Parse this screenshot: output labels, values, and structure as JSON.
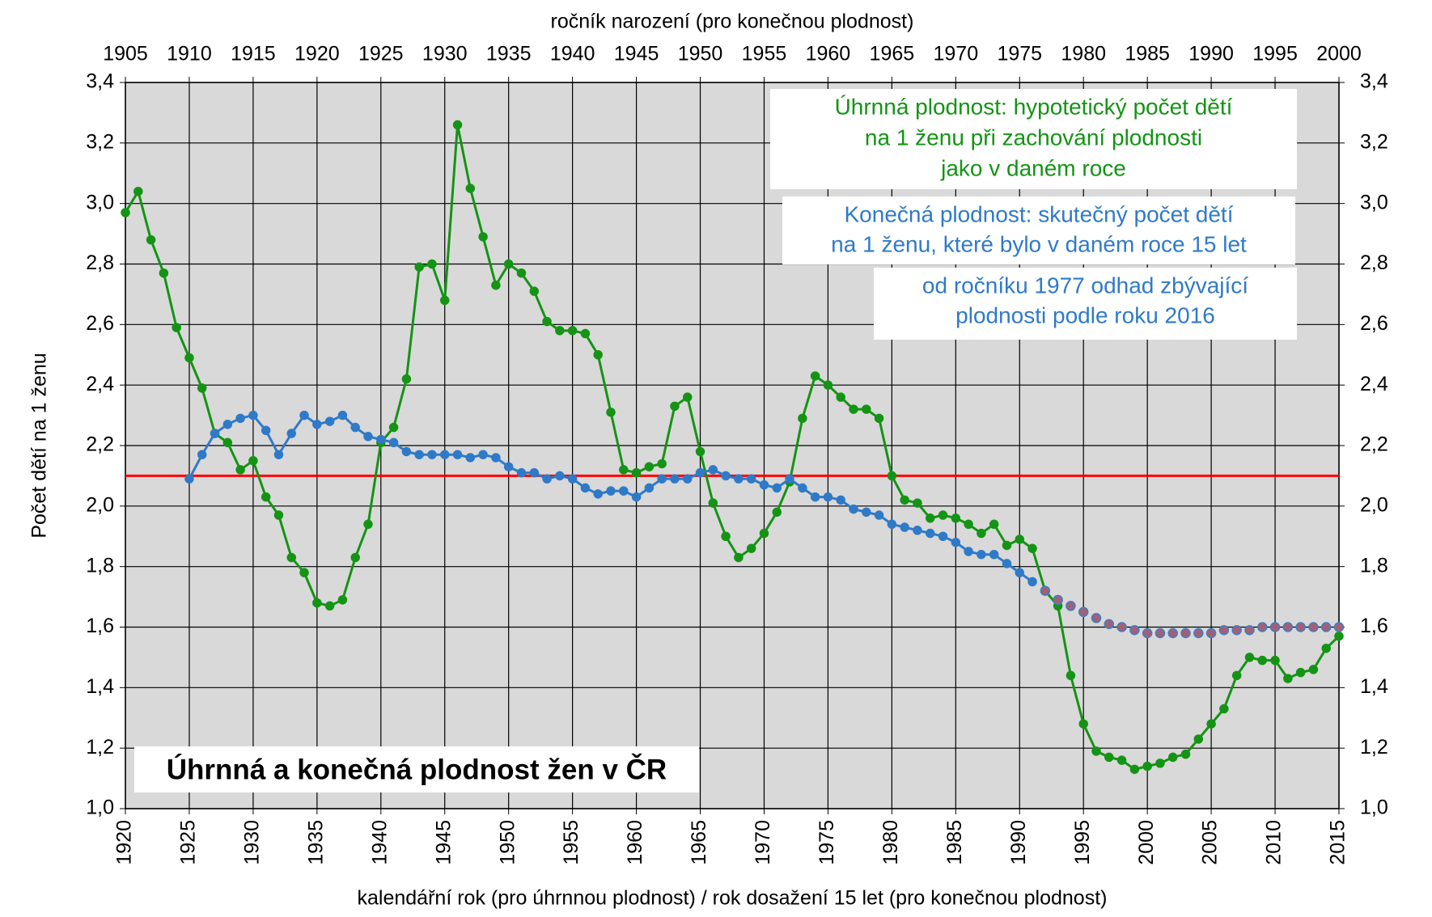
{
  "chart_data": {
    "type": "line",
    "x_title": "kalendářní rok (pro úhrnnou plodnost) / rok dosažení 15 let (pro konečnou plodnost)",
    "x2_title": "ročník narození (pro konečnou plodnost)",
    "y_title": "Počet dětí na 1 ženu",
    "title": "Úhrnná a konečná plodnost žen v ČR",
    "x": [
      1920,
      1921,
      1922,
      1923,
      1924,
      1925,
      1926,
      1927,
      1928,
      1929,
      1930,
      1931,
      1932,
      1933,
      1934,
      1935,
      1936,
      1937,
      1938,
      1939,
      1940,
      1941,
      1942,
      1943,
      1944,
      1945,
      1946,
      1947,
      1948,
      1949,
      1950,
      1951,
      1952,
      1953,
      1954,
      1955,
      1956,
      1957,
      1958,
      1959,
      1960,
      1961,
      1962,
      1963,
      1964,
      1965,
      1966,
      1967,
      1968,
      1969,
      1970,
      1971,
      1972,
      1973,
      1974,
      1975,
      1976,
      1977,
      1978,
      1979,
      1980,
      1981,
      1982,
      1983,
      1984,
      1985,
      1986,
      1987,
      1988,
      1989,
      1990,
      1991,
      1992,
      1993,
      1994,
      1995,
      1996,
      1997,
      1998,
      1999,
      2000,
      2001,
      2002,
      2003,
      2004,
      2005,
      2006,
      2007,
      2008,
      2009,
      2010,
      2011,
      2012,
      2013,
      2014,
      2015
    ],
    "series": [
      {
        "color": "#149414",
        "line": true,
        "values": [
          2.97,
          3.04,
          2.88,
          2.77,
          2.59,
          2.49,
          2.39,
          2.24,
          2.21,
          2.12,
          2.15,
          2.03,
          1.97,
          1.83,
          1.78,
          1.68,
          1.67,
          1.69,
          1.83,
          1.94,
          2.21,
          2.26,
          2.42,
          2.79,
          2.8,
          2.68,
          3.26,
          3.05,
          2.89,
          2.73,
          2.8,
          2.77,
          2.71,
          2.61,
          2.58,
          2.58,
          2.57,
          2.5,
          2.31,
          2.12,
          2.11,
          2.13,
          2.14,
          2.33,
          2.36,
          2.18,
          2.01,
          1.9,
          1.83,
          1.86,
          1.91,
          1.98,
          2.08,
          2.29,
          2.43,
          2.4,
          2.36,
          2.32,
          2.32,
          2.29,
          2.1,
          2.02,
          2.01,
          1.96,
          1.97,
          1.96,
          1.94,
          1.91,
          1.94,
          1.87,
          1.89,
          1.86,
          1.72,
          1.67,
          1.44,
          1.28,
          1.19,
          1.17,
          1.16,
          1.13,
          1.14,
          1.15,
          1.17,
          1.18,
          1.23,
          1.28,
          1.33,
          1.44,
          1.5,
          1.49,
          1.49,
          1.43,
          1.45,
          1.46,
          1.53,
          1.57
        ]
      },
      {
        "color": "#2f7ac8",
        "line": true,
        "values": [
          null,
          null,
          null,
          null,
          null,
          2.09,
          2.17,
          2.24,
          2.27,
          2.29,
          2.3,
          2.25,
          2.17,
          2.24,
          2.3,
          2.27,
          2.28,
          2.3,
          2.26,
          2.23,
          2.22,
          2.21,
          2.18,
          2.17,
          2.17,
          2.17,
          2.17,
          2.16,
          2.17,
          2.16,
          2.13,
          2.11,
          2.11,
          2.09,
          2.1,
          2.09,
          2.06,
          2.04,
          2.05,
          2.05,
          2.03,
          2.06,
          2.09,
          2.09,
          2.09,
          2.11,
          2.12,
          2.1,
          2.09,
          2.09,
          2.07,
          2.06,
          2.09,
          2.06,
          2.03,
          2.03,
          2.02,
          1.99,
          1.98,
          1.97,
          1.94,
          1.93,
          1.92,
          1.91,
          1.9,
          1.88,
          1.85,
          1.84,
          1.84,
          1.81,
          1.78,
          1.75,
          null,
          null,
          null,
          null,
          null,
          null,
          null,
          null,
          null,
          null,
          null,
          null,
          null,
          null,
          null,
          null,
          null,
          null,
          null,
          null,
          null,
          null,
          null,
          null
        ]
      },
      {
        "color": "#a0607a",
        "line": false,
        "values": [
          null,
          null,
          null,
          null,
          null,
          null,
          null,
          null,
          null,
          null,
          null,
          null,
          null,
          null,
          null,
          null,
          null,
          null,
          null,
          null,
          null,
          null,
          null,
          null,
          null,
          null,
          null,
          null,
          null,
          null,
          null,
          null,
          null,
          null,
          null,
          null,
          null,
          null,
          null,
          null,
          null,
          null,
          null,
          null,
          null,
          null,
          null,
          null,
          null,
          null,
          null,
          null,
          null,
          null,
          null,
          null,
          null,
          null,
          null,
          null,
          null,
          null,
          null,
          null,
          null,
          null,
          null,
          null,
          null,
          null,
          null,
          null,
          1.72,
          1.69,
          1.67,
          1.65,
          1.63,
          1.61,
          1.6,
          1.59,
          1.58,
          1.58,
          1.58,
          1.58,
          1.58,
          1.58,
          1.59,
          1.59,
          1.59,
          1.6,
          1.6,
          1.6,
          1.6,
          1.6,
          1.6,
          1.6
        ]
      }
    ],
    "hline": {
      "value": 2.1,
      "color": "#ff0000"
    },
    "xlim": [
      1920,
      2015
    ],
    "xticks": [
      1920,
      1925,
      1930,
      1935,
      1940,
      1945,
      1950,
      1955,
      1960,
      1965,
      1970,
      1975,
      1980,
      1985,
      1990,
      1995,
      2000,
      2005,
      2010,
      2015
    ],
    "x2lim": [
      1905,
      2000
    ],
    "x2ticks": [
      1905,
      1910,
      1915,
      1920,
      1925,
      1930,
      1935,
      1940,
      1945,
      1950,
      1955,
      1960,
      1965,
      1970,
      1975,
      1980,
      1985,
      1990,
      1995,
      2000
    ],
    "ylim": [
      1.0,
      3.4
    ],
    "yticks": [
      {
        "value": 1.0,
        "label": "1,0"
      },
      {
        "value": 1.2,
        "label": "1,2"
      },
      {
        "value": 1.4,
        "label": "1,4"
      },
      {
        "value": 1.6,
        "label": "1,6"
      },
      {
        "value": 1.8,
        "label": "1,8"
      },
      {
        "value": 2.0,
        "label": "2,0"
      },
      {
        "value": 2.2,
        "label": "2,2"
      },
      {
        "value": 2.4,
        "label": "2,4"
      },
      {
        "value": 2.6,
        "label": "2,6"
      },
      {
        "value": 2.8,
        "label": "2,8"
      },
      {
        "value": 3.0,
        "label": "3,0"
      },
      {
        "value": 3.2,
        "label": "3,2"
      },
      {
        "value": 3.4,
        "label": "3,4"
      }
    ],
    "y2lim": [
      1.0,
      3.4
    ],
    "y2ticks": [
      {
        "value": 1.0,
        "label": "1,0"
      },
      {
        "value": 1.2,
        "label": "1,2"
      },
      {
        "value": 1.4,
        "label": "1,4"
      },
      {
        "value": 1.6,
        "label": "1,6"
      },
      {
        "value": 1.8,
        "label": "1,8"
      },
      {
        "value": 2.0,
        "label": "2,0"
      },
      {
        "value": 2.2,
        "label": "2,2"
      },
      {
        "value": 2.4,
        "label": "2,4"
      },
      {
        "value": 2.6,
        "label": "2,6"
      },
      {
        "value": 2.8,
        "label": "2,8"
      },
      {
        "value": 3.0,
        "label": "3,0"
      },
      {
        "value": 3.2,
        "label": "3,2"
      },
      {
        "value": 3.4,
        "label": "3,4"
      }
    ],
    "grid": true,
    "background": "#d9d9d9",
    "annotations": [
      {
        "color": "#149414",
        "lines": [
          "Úhrnná plodnost: hypotetický počet dětí",
          "na 1 ženu při zachování plodnosti",
          "jako v daném roce"
        ]
      },
      {
        "color": "#2f7ac8",
        "lines": [
          "Konečná plodnost: skutečný počet dětí",
          "na 1 ženu, které bylo v daném roce 15 let"
        ]
      },
      {
        "color": "#2f7ac8",
        "lines": [
          "od ročníku 1977 odhad zbývající",
          "plodnosti podle roku 2016"
        ]
      }
    ]
  }
}
